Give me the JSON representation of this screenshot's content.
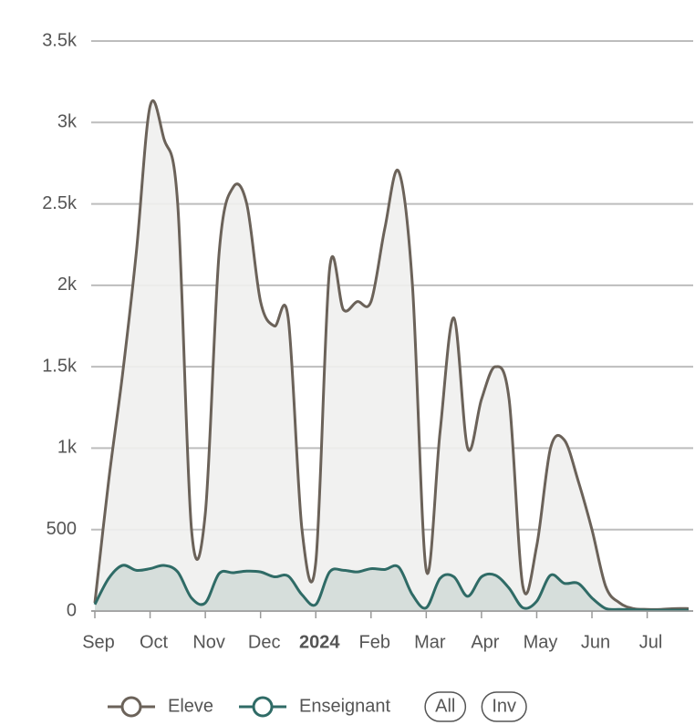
{
  "chart_data": {
    "type": "area",
    "categories": [
      "Sep",
      null,
      null,
      null,
      "Oct",
      null,
      null,
      null,
      "Nov",
      null,
      null,
      null,
      "Dec",
      null,
      null,
      null,
      "2024",
      null,
      null,
      null,
      "Feb",
      null,
      null,
      null,
      "Mar",
      null,
      null,
      null,
      "Apr",
      null,
      null,
      null,
      "May",
      null,
      null,
      null,
      "Jun",
      null,
      null,
      null,
      "Jul",
      null,
      null,
      null
    ],
    "series": [
      {
        "name": "Eleve",
        "color": "#6b6259",
        "fill": "#f0f0ee",
        "values": [
          50,
          800,
          1450,
          2200,
          3100,
          2900,
          2500,
          500,
          600,
          2200,
          2600,
          2500,
          1900,
          1750,
          1800,
          500,
          300,
          2100,
          1850,
          1900,
          1900,
          2350,
          2700,
          2000,
          250,
          1100,
          1800,
          1000,
          1300,
          1500,
          1300,
          150,
          400,
          1000,
          1050,
          800,
          500,
          150,
          50,
          15,
          10,
          10,
          15,
          15
        ]
      },
      {
        "name": "Enseignant",
        "color": "#2f6b66",
        "fill": "#d3dbd8",
        "values": [
          40,
          200,
          280,
          250,
          260,
          280,
          240,
          80,
          50,
          230,
          235,
          245,
          240,
          210,
          215,
          100,
          40,
          240,
          250,
          240,
          260,
          255,
          270,
          100,
          20,
          200,
          210,
          90,
          210,
          220,
          140,
          20,
          60,
          220,
          170,
          170,
          80,
          15,
          10,
          8,
          5,
          5,
          5,
          5
        ]
      }
    ],
    "ylim": [
      0,
      3500
    ],
    "yticks": [
      0,
      500,
      {
        "value": 1000,
        "label": "1k"
      },
      {
        "value": 1500,
        "label": "1.5k"
      },
      {
        "value": 2000,
        "label": "2k"
      },
      {
        "value": 2500,
        "label": "2.5k"
      },
      {
        "value": 3000,
        "label": "3k"
      },
      {
        "value": 3500,
        "label": "3.5k"
      }
    ],
    "grid": true,
    "legend": "bottom",
    "controls": [
      "All",
      "Inv"
    ]
  }
}
